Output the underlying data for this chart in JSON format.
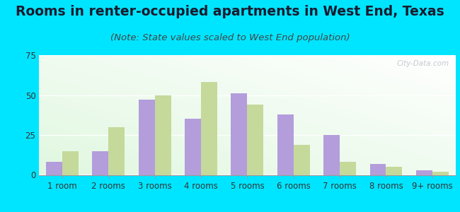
{
  "title": "Rooms in renter-occupied apartments in West End, Texas",
  "subtitle": "(Note: State values scaled to West End population)",
  "categories": [
    "1 room",
    "2 rooms",
    "3 rooms",
    "4 rooms",
    "5 rooms",
    "6 rooms",
    "7 rooms",
    "8 rooms",
    "9+ rooms"
  ],
  "west_end": [
    8,
    15,
    47,
    35,
    51,
    38,
    25,
    7,
    3
  ],
  "texas": [
    15,
    30,
    50,
    58,
    44,
    19,
    8,
    5,
    2
  ],
  "west_end_color": "#b39ddb",
  "texas_color": "#c5d99b",
  "bg_color": "#00e5ff",
  "ylim": [
    0,
    75
  ],
  "yticks": [
    0,
    25,
    50,
    75
  ],
  "bar_width": 0.35,
  "title_fontsize": 13.5,
  "subtitle_fontsize": 9.5,
  "tick_fontsize": 8.5,
  "legend_fontsize": 9.5,
  "watermark": "City-Data.com"
}
